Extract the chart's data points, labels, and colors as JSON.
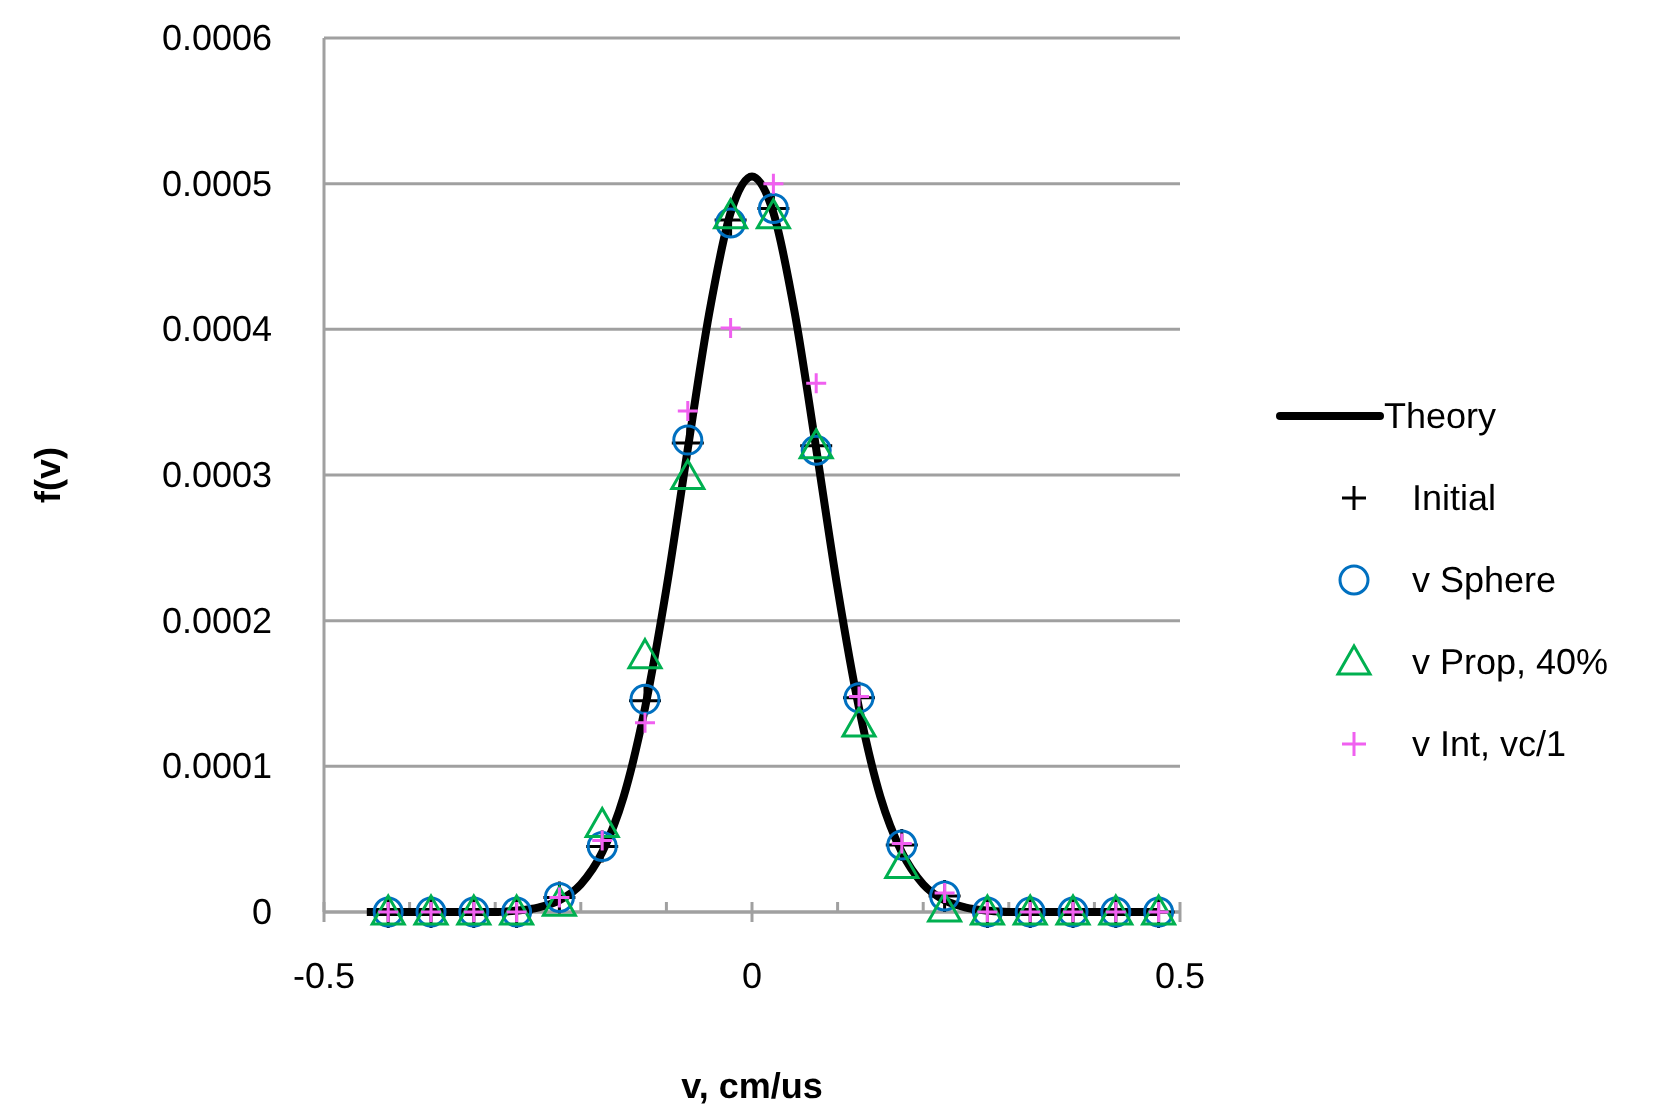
{
  "chart_data": {
    "type": "scatter",
    "xlabel": "v, cm/us",
    "ylabel": "f(v)",
    "xlim": [
      -0.5,
      0.5
    ],
    "ylim": [
      0,
      0.0006
    ],
    "xticks": [
      -0.5,
      {
        "value": -0.4,
        "label": null
      },
      {
        "value": -0.3,
        "label": null
      },
      {
        "value": -0.2,
        "label": null
      },
      {
        "value": -0.1,
        "label": null
      },
      0,
      {
        "value": 0.1,
        "label": null
      },
      {
        "value": 0.2,
        "label": null
      },
      {
        "value": 0.3,
        "label": null
      },
      {
        "value": 0.4,
        "label": null
      },
      0.5
    ],
    "yticks": [
      0,
      0.0001,
      0.0002,
      0.0003,
      0.0004,
      0.0005,
      0.0006
    ],
    "grid": "y",
    "legend": "right",
    "x": [
      -0.425,
      -0.375,
      -0.325,
      -0.275,
      -0.225,
      -0.175,
      -0.125,
      -0.075,
      -0.025,
      0.025,
      0.075,
      0.125,
      0.175,
      0.225,
      0.275,
      0.325,
      0.375,
      0.425,
      0.475
    ],
    "series": [
      {
        "name": "Theory",
        "type": "line",
        "color": "#000000",
        "marker": "none",
        "line_style": "solid",
        "x": [
          -0.45,
          -0.3,
          -0.275,
          -0.25,
          -0.225,
          -0.2,
          -0.175,
          -0.15,
          -0.125,
          -0.1,
          -0.075,
          -0.05,
          -0.025,
          0,
          0.025,
          0.05,
          0.075,
          0.1,
          0.125,
          0.15,
          0.175,
          0.2,
          0.225,
          0.25,
          0.275,
          0.3,
          0.475
        ],
        "values": [
          0,
          0,
          1e-06,
          3e-06,
          8e-06,
          1.9e-05,
          4.1e-05,
          7.9e-05,
          0.00014,
          0.000222,
          0.000318,
          0.000411,
          0.00048,
          0.000505,
          0.00048,
          0.000411,
          0.000318,
          0.000222,
          0.00014,
          7.9e-05,
          4.1e-05,
          1.9e-05,
          8e-06,
          3e-06,
          1e-06,
          0,
          0
        ]
      },
      {
        "name": "Initial",
        "color": "#000000",
        "marker": "cross",
        "values": [
          0,
          0,
          0,
          0,
          1e-05,
          4.5e-05,
          0.000145,
          0.000322,
          0.000475,
          0.000483,
          0.00032,
          0.000147,
          4.6e-05,
          1.1e-05,
          0,
          0,
          0,
          0,
          0
        ]
      },
      {
        "name": "v Sphere",
        "color": "#0070c0",
        "marker": "circle",
        "values": [
          0,
          0,
          0,
          0,
          1e-05,
          4.5e-05,
          0.000146,
          0.000324,
          0.000473,
          0.000483,
          0.000317,
          0.000147,
          4.6e-05,
          1.1e-05,
          0,
          0,
          0,
          0,
          0
        ]
      },
      {
        "name": "v Prop, 40%",
        "color": "#00b050",
        "marker": "triangle",
        "values": [
          0,
          0,
          0,
          0,
          6e-06,
          6e-05,
          0.000176,
          0.000299,
          0.000478,
          0.000478,
          0.00032,
          0.000129,
          3.2e-05,
          2e-06,
          0,
          0,
          0,
          0,
          0
        ]
      },
      {
        "name": "v Int, vc/1",
        "color": "#f060f0",
        "marker": "cross",
        "values": [
          0,
          0,
          0,
          0,
          1e-05,
          4.9e-05,
          0.00013,
          0.000344,
          0.000401,
          0.0005,
          0.000363,
          0.000148,
          4.7e-05,
          1.3e-05,
          0,
          0,
          0,
          0,
          0
        ]
      }
    ]
  }
}
